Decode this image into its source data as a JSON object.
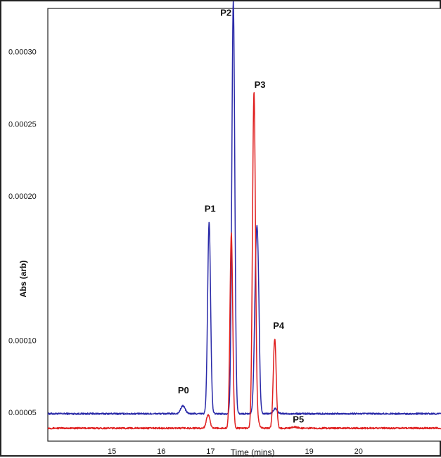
{
  "chart_data": {
    "type": "line",
    "title": "",
    "xlabel": "Time (mins)",
    "ylabel": "Abs (arb)",
    "xlim": [
      13.7,
      21.7
    ],
    "ylim": [
      3e-05,
      0.00033
    ],
    "x_ticks": [
      "15",
      "16",
      "17",
      "19",
      "20"
    ],
    "x_tick_values": [
      15,
      16,
      17,
      19,
      20
    ],
    "y_ticks": [
      "0.00005",
      "0.00010",
      "0.00020",
      "0.00025",
      "0.00030"
    ],
    "y_tick_values": [
      5e-05,
      0.0001,
      0.0002,
      0.00025,
      0.0003
    ],
    "grid": false,
    "legend": "none",
    "series": [
      {
        "color": "#2a2aa8",
        "baseline": 4.9e-05,
        "peaks": [
          {
            "t": 16.44,
            "h": 5.5e-06,
            "w": 0.045
          },
          {
            "t": 16.97,
            "h": 0.000133,
            "w": 0.03
          },
          {
            "t": 17.46,
            "h": 0.000286,
            "w": 0.03
          },
          {
            "t": 17.93,
            "h": 0.000116,
            "w": 0.036
          },
          {
            "t": 17.97,
            "h": 3.8e-05,
            "w": 0.025
          },
          {
            "t": 18.31,
            "h": 3.5e-06,
            "w": 0.04
          }
        ]
      },
      {
        "color": "#e02020",
        "baseline": 3.9e-05,
        "peaks": [
          {
            "t": 16.95,
            "h": 9.5e-06,
            "w": 0.035
          },
          {
            "t": 17.42,
            "h": 0.000135,
            "w": 0.028
          },
          {
            "t": 17.88,
            "h": 0.000233,
            "w": 0.03
          },
          {
            "t": 17.96,
            "h": 4.8e-06,
            "w": 0.03
          },
          {
            "t": 18.3,
            "h": 6.2e-05,
            "w": 0.03
          },
          {
            "t": 18.71,
            "h": 8e-07,
            "w": 0.05
          }
        ]
      }
    ],
    "annotations": [
      {
        "text": "P0",
        "x": 16.45,
        "y": 6.3e-05
      },
      {
        "text": "P1",
        "x": 16.99,
        "y": 0.000189
      },
      {
        "text": "P2",
        "x": 17.31,
        "y": 0.000325
      },
      {
        "text": "P3",
        "x": 18.0,
        "y": 0.000275
      },
      {
        "text": "P4",
        "x": 18.38,
        "y": 0.000108
      },
      {
        "text": "P5",
        "x": 18.78,
        "y": 4.3e-05
      }
    ]
  }
}
